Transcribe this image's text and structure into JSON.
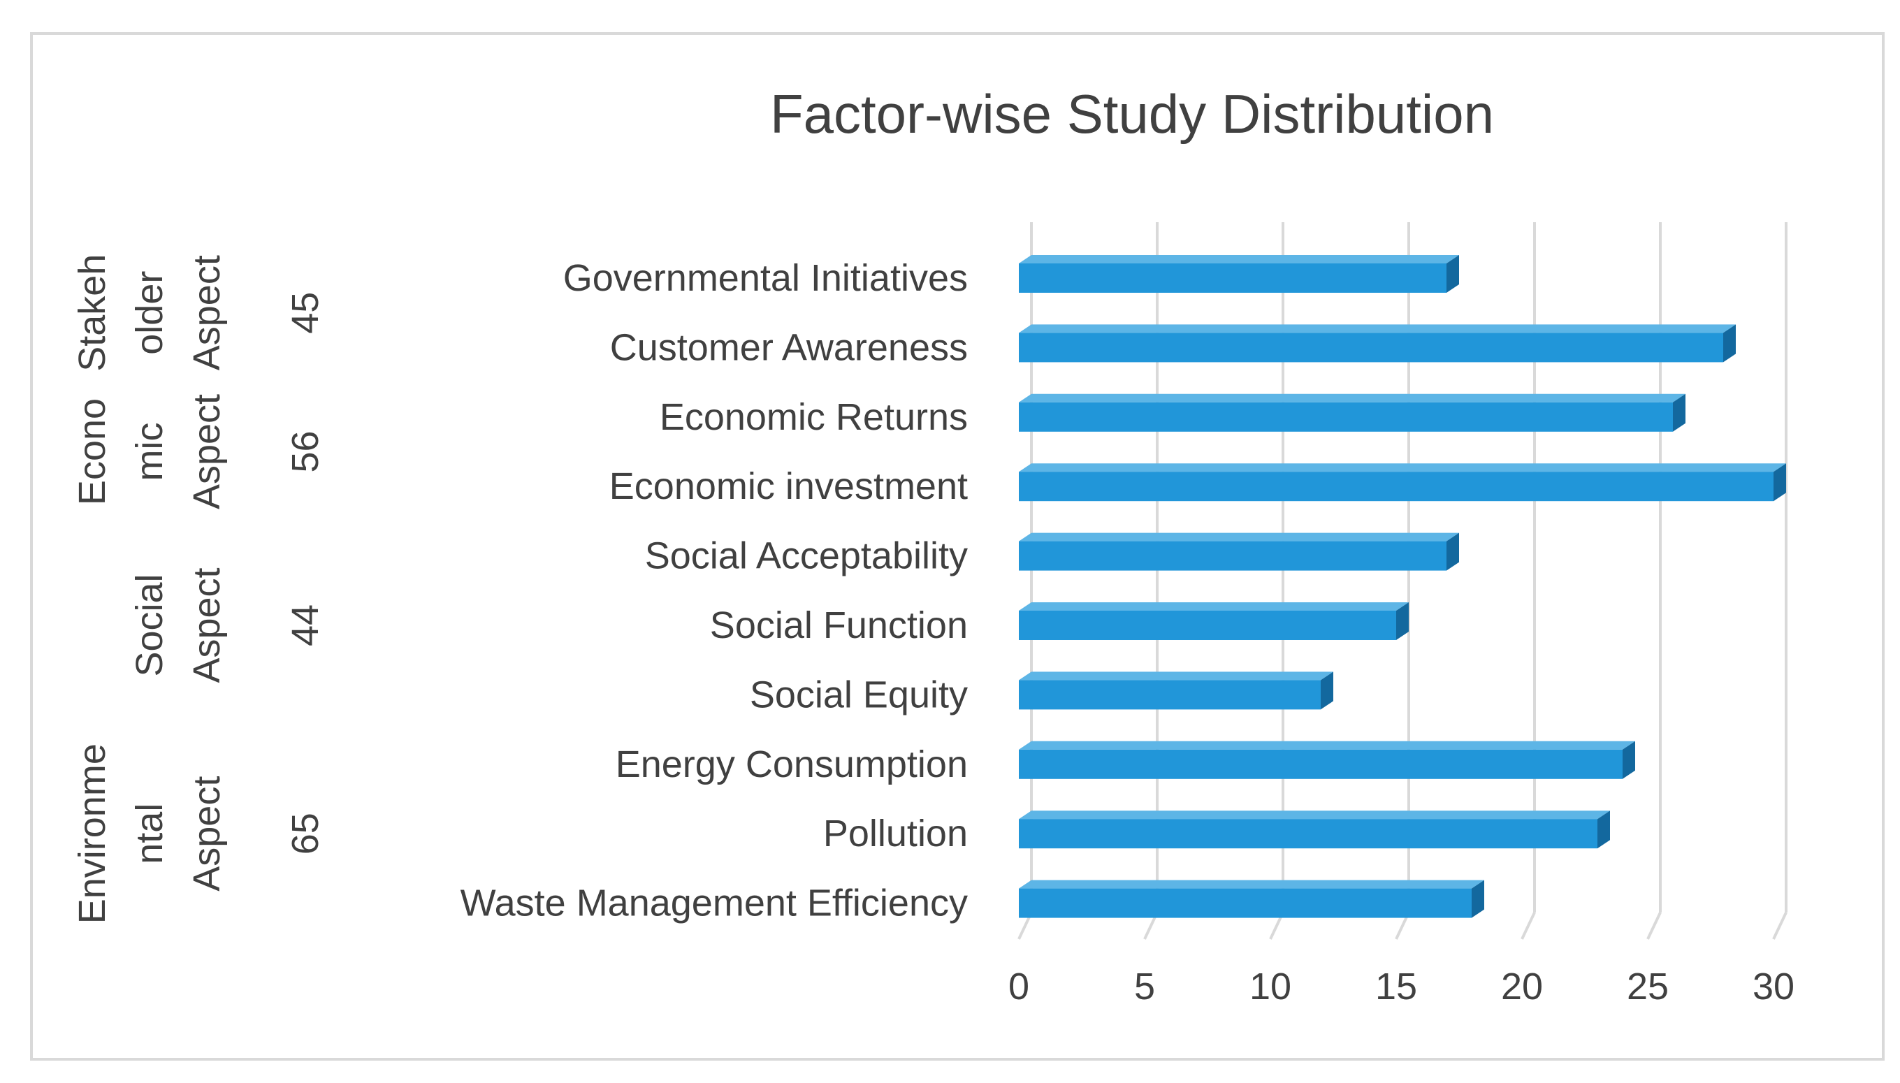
{
  "chart_data": {
    "type": "bar",
    "orientation": "horizontal",
    "title": "Factor-wise Study Distribution",
    "xlabel": "",
    "ylabel": "",
    "xlim": [
      0,
      30
    ],
    "ticks": [
      0,
      5,
      10,
      15,
      20,
      25,
      30
    ],
    "grid": true,
    "categories": [
      "Governmental Initiatives",
      "Customer Awareness",
      "Economic Returns",
      "Economic investment",
      "Social Acceptability",
      "Social Function",
      "Social Equity",
      "Energy Consumption",
      "Pollution",
      "Waste Management Efficiency"
    ],
    "values": [
      17,
      28,
      26,
      30,
      17,
      15,
      12,
      24,
      23,
      18
    ],
    "groups": [
      {
        "lines": [
          "Stakeh",
          "older",
          "Aspect"
        ],
        "count": "45",
        "categories": [
          "Governmental Initiatives",
          "Customer Awareness"
        ]
      },
      {
        "lines": [
          "Econo",
          "mic",
          "Aspect"
        ],
        "count": "56",
        "categories": [
          "Economic Returns",
          "Economic investment"
        ]
      },
      {
        "lines": [
          "",
          "Social",
          "Aspect"
        ],
        "count": "44",
        "categories": [
          "Social Acceptability",
          "Social Function",
          "Social Equity"
        ]
      },
      {
        "lines": [
          "Environme",
          "ntal",
          "Aspect"
        ],
        "count": "65",
        "categories": [
          "Energy Consumption",
          "Pollution",
          "Waste Management Efficiency"
        ]
      }
    ],
    "colors": {
      "bar_front": "#2196d9",
      "bar_top": "#5db5e6",
      "bar_side": "#13689e",
      "grid": "#d9d9d9",
      "text": "#404040",
      "border": "#d9d9d9"
    }
  }
}
